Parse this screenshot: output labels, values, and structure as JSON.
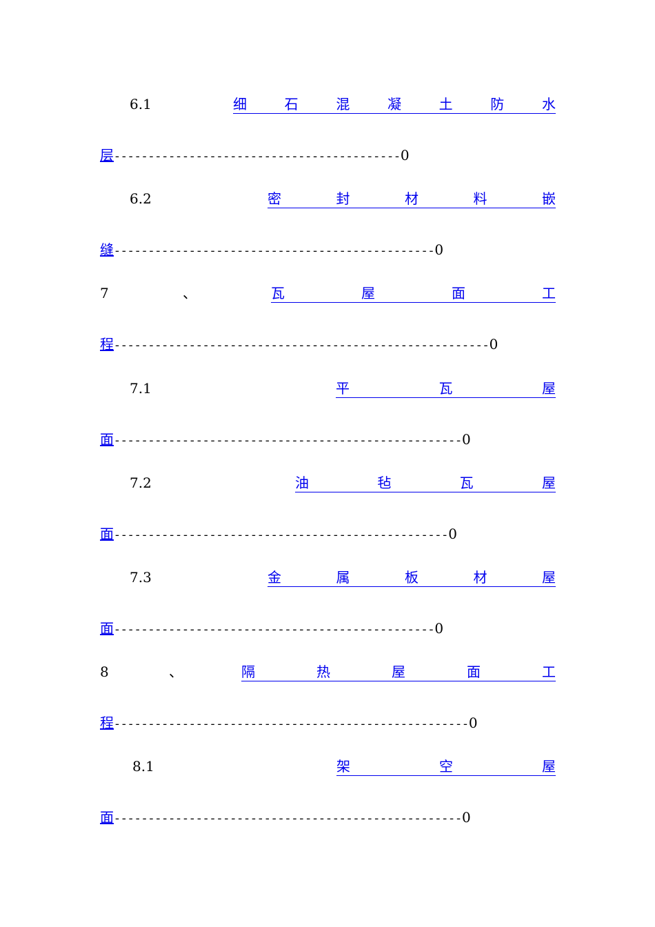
{
  "toc": {
    "entries": [
      {
        "number": "6.1",
        "title": [
          "细",
          "石",
          "混",
          "凝",
          "土",
          "防",
          "水"
        ],
        "title_end": "层",
        "leader": "------------------------------------------",
        "page": "0"
      },
      {
        "number": "6.2",
        "title": [
          "密",
          "封",
          "材",
          "料",
          "嵌"
        ],
        "title_end": "缝",
        "leader": "-----------------------------------------------",
        "page": "0"
      },
      {
        "number": "7",
        "separator": "、",
        "title": [
          "瓦",
          "屋",
          "面",
          "工"
        ],
        "title_end": "程",
        "leader": "-------------------------------------------------------",
        "page": "0"
      },
      {
        "number": "7.1",
        "title": [
          "平",
          "瓦",
          "屋"
        ],
        "title_end": "面",
        "leader": "---------------------------------------------------",
        "page": "0"
      },
      {
        "number": "7.2",
        "title": [
          "油",
          "毡",
          "瓦",
          "屋"
        ],
        "title_end": "面",
        "leader": "-------------------------------------------------",
        "page": "0"
      },
      {
        "number": "7.3",
        "title": [
          "金",
          "属",
          "板",
          "材",
          "屋"
        ],
        "title_end": "面",
        "leader": "-----------------------------------------------",
        "page": "0"
      },
      {
        "number": "8",
        "separator": "、",
        "title": [
          "隔",
          "热",
          "屋",
          "面",
          "工"
        ],
        "title_end": "程",
        "leader": "----------------------------------------------------",
        "page": "0"
      },
      {
        "number": "8.1",
        "title": [
          "架",
          "空",
          "屋"
        ],
        "title_end": "面",
        "leader": "---------------------------------------------------",
        "page": "0"
      }
    ]
  }
}
